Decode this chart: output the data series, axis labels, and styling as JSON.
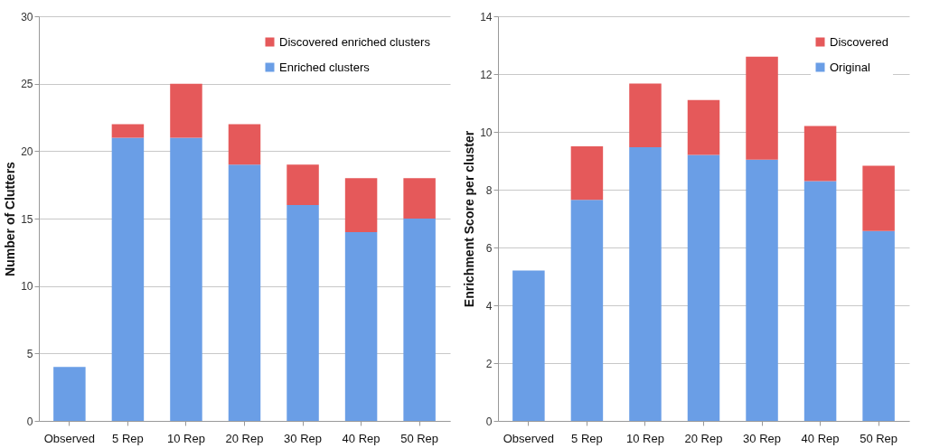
{
  "chart_data": [
    {
      "type": "bar",
      "stacked": true,
      "ylabel": "Number of Clutters",
      "categories": [
        "Observed",
        "5 Rep",
        "10 Rep",
        "20 Rep",
        "30 Rep",
        "40 Rep",
        "50 Rep"
      ],
      "ylim": [
        0,
        30
      ],
      "yticks": [
        0,
        5,
        10,
        15,
        20,
        25,
        30
      ],
      "grid": "y",
      "legend": "top right",
      "series": [
        {
          "name": "Enriched clusters",
          "color": "#6a9ee6",
          "values": [
            4,
            21,
            21,
            19,
            16,
            14,
            15
          ]
        },
        {
          "name": "Discovered enriched clusters",
          "color": "#e5595a",
          "values": [
            null,
            1,
            4,
            3,
            3,
            4,
            3
          ]
        }
      ]
    },
    {
      "type": "bar",
      "stacked": true,
      "ylabel": "Enrichment Score per cluster",
      "categories": [
        "Observed",
        "5 Rep",
        "10 Rep",
        "20 Rep",
        "30 Rep",
        "40 Rep",
        "50 Rep"
      ],
      "ylim": [
        0,
        14
      ],
      "yticks": [
        0,
        2,
        4,
        6,
        8,
        10,
        12,
        14
      ],
      "grid": "y",
      "legend": "top right",
      "series": [
        {
          "name": "Original",
          "color": "#6a9ee6",
          "values": [
            5.2,
            7.65,
            9.47,
            9.2,
            9.04,
            8.3,
            6.57
          ]
        },
        {
          "name": "Discovered",
          "color": "#e5595a",
          "values": [
            null,
            1.85,
            2.2,
            1.9,
            3.56,
            1.9,
            2.26
          ]
        }
      ]
    }
  ]
}
